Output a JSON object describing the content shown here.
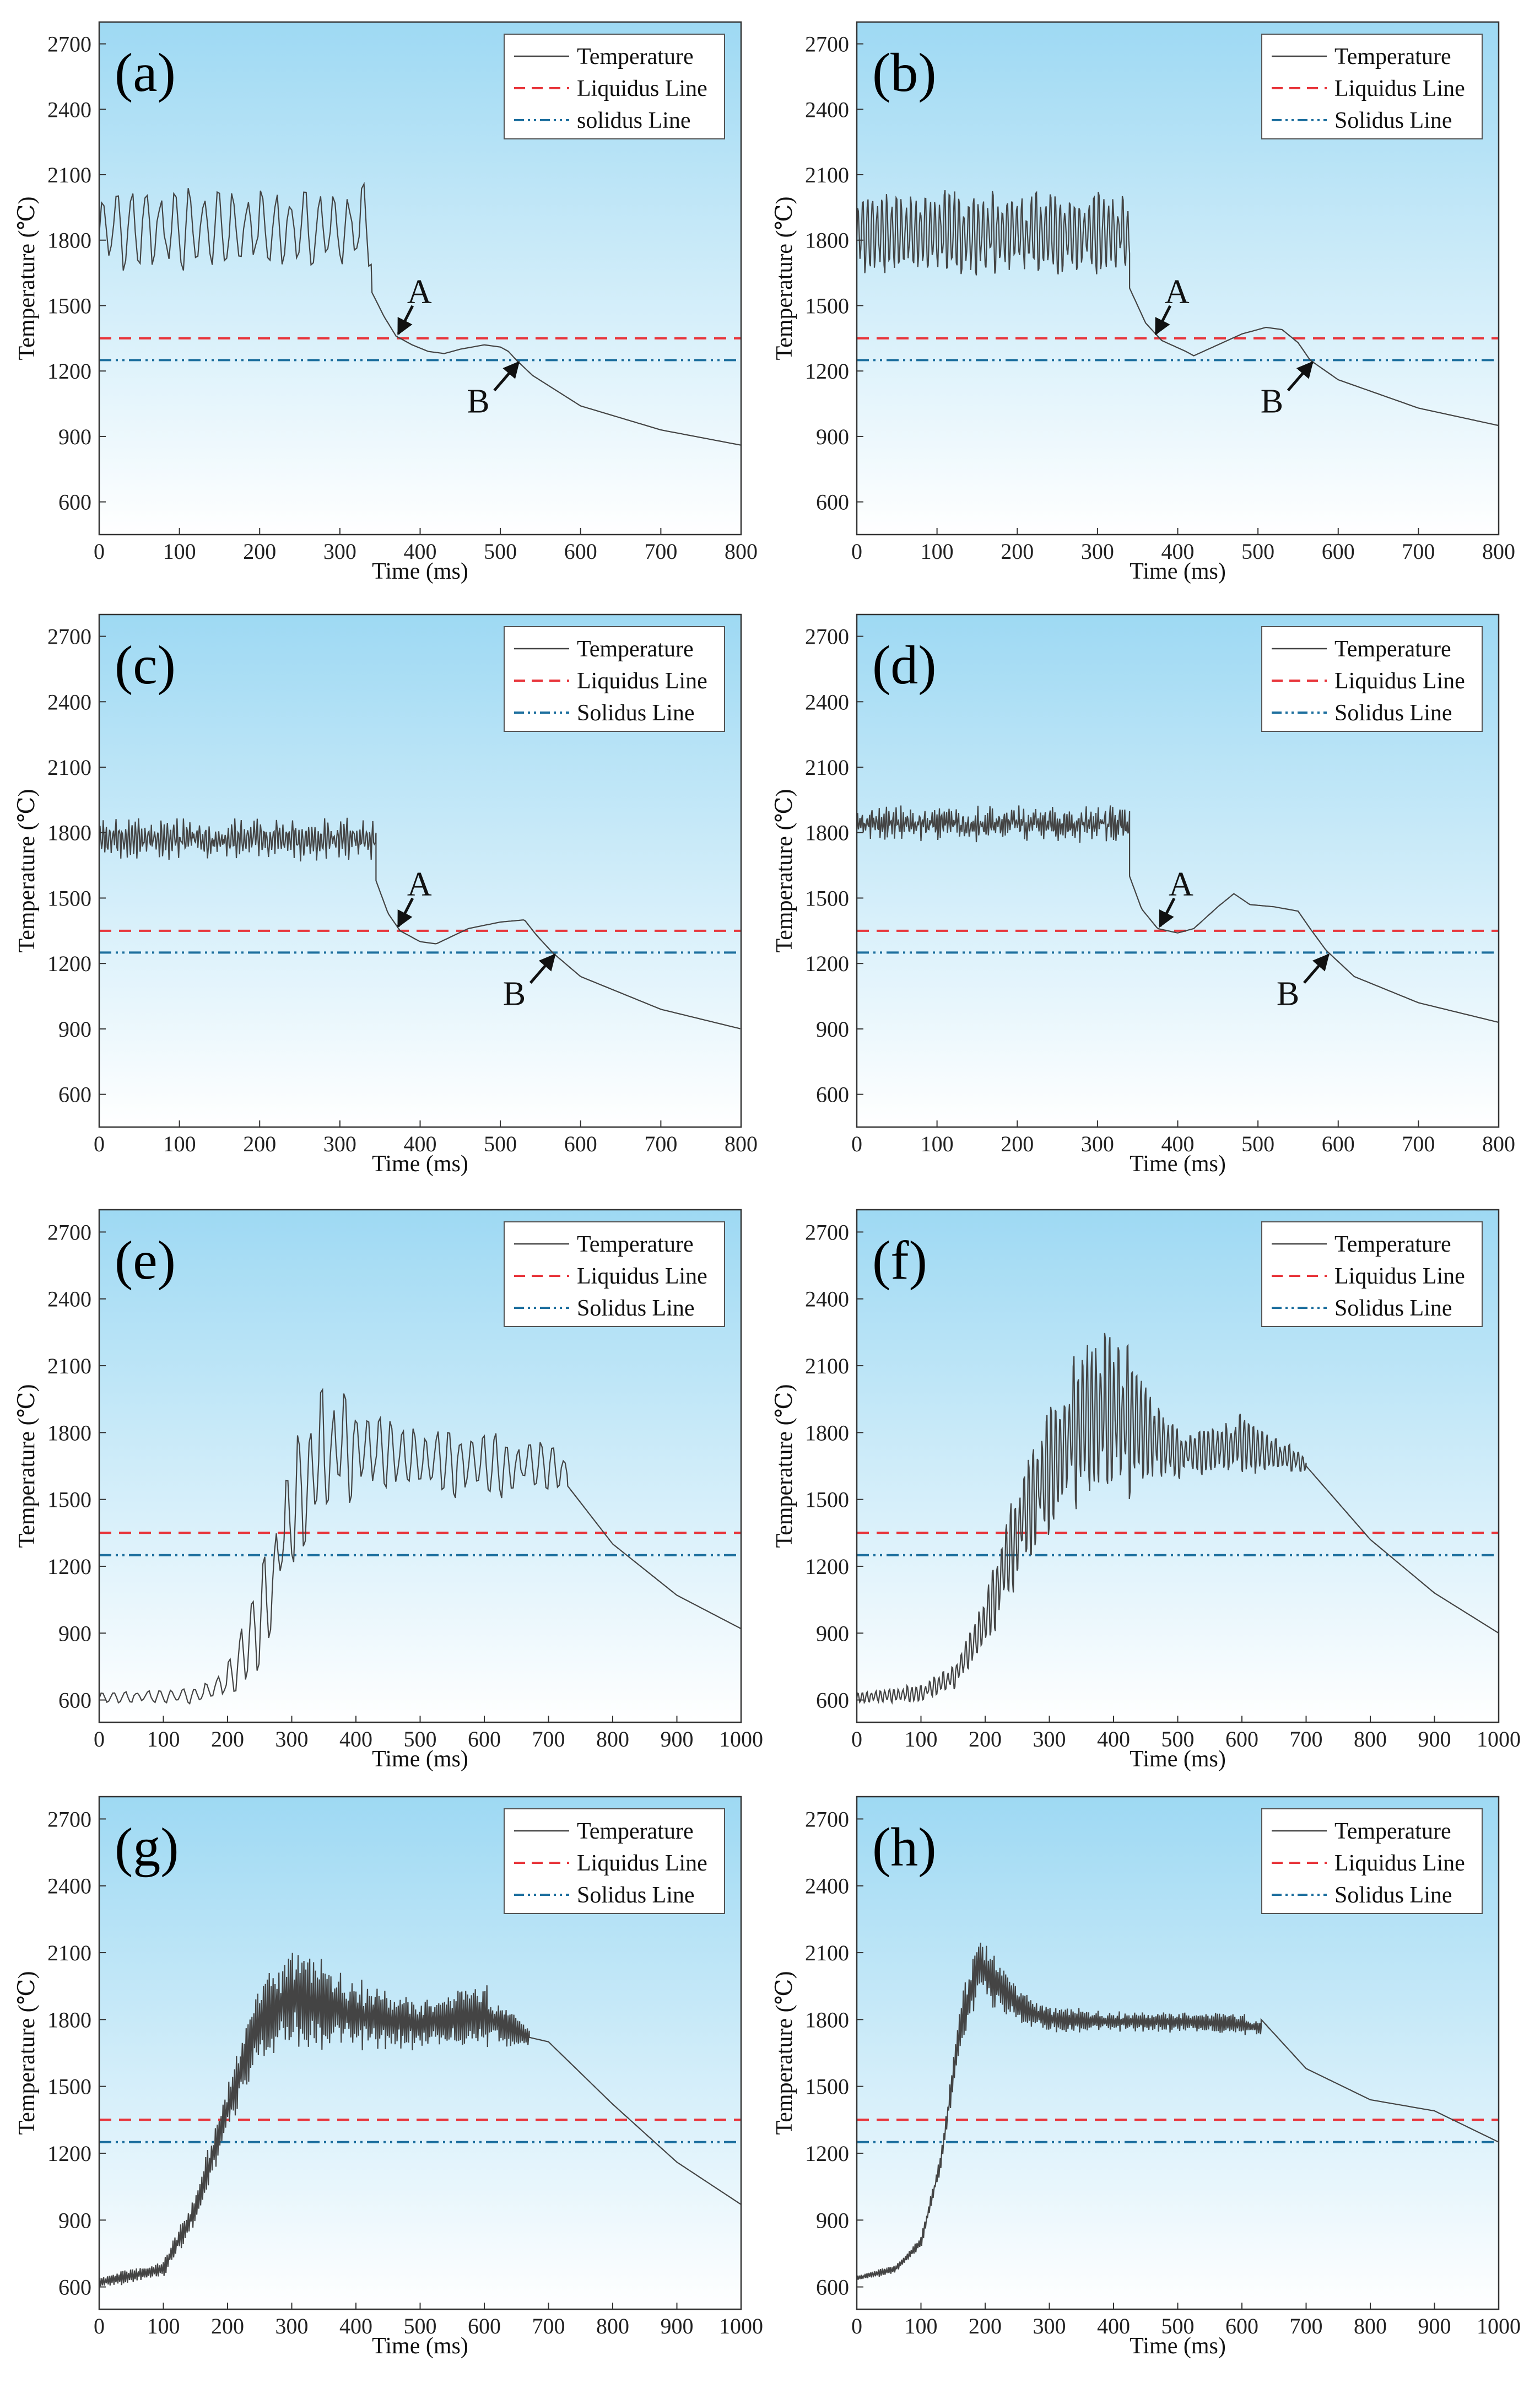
{
  "colors": {
    "bg_top": "#9ed9f3",
    "bg_bottom": "#ffffff",
    "temperature": "#444444",
    "liquidus": "#e8353b",
    "solidus": "#1d6f9e"
  },
  "chart_data": [
    {
      "type": "line",
      "panel": "(a)",
      "xlabel": "Time (ms)",
      "ylabel": "Temperature (℃)",
      "xlim": [
        0,
        800
      ],
      "ylim": [
        450,
        2800
      ],
      "xticks": [
        "0",
        "100",
        "200",
        "300",
        "400",
        "500",
        "600",
        "700",
        "800"
      ],
      "yticks": [
        "600",
        "900",
        "1200",
        "1500",
        "1800",
        "2100",
        "2400",
        "2700"
      ],
      "legend": [
        "Temperature",
        "Liquidus Line",
        "solidus Line"
      ],
      "liquidus": 1350,
      "solidus": 1250,
      "annotations": [
        {
          "text": "A",
          "x": 370,
          "y": 1360
        },
        {
          "text": "B",
          "x": 520,
          "y": 1250
        }
      ],
      "series": [
        {
          "name": "Temperature",
          "profile": "cooling",
          "melt_end": 340,
          "osc_center": 1850,
          "osc_amp": 200,
          "osc_period": 18,
          "x": [
            340,
            355,
            370,
            390,
            410,
            430,
            450,
            480,
            500,
            510,
            520,
            540,
            600,
            700,
            800
          ],
          "values": [
            1560,
            1450,
            1360,
            1320,
            1290,
            1280,
            1300,
            1320,
            1310,
            1290,
            1250,
            1180,
            1040,
            930,
            860
          ]
        }
      ]
    },
    {
      "type": "line",
      "panel": "(b)",
      "xlabel": "Time (ms)",
      "ylabel": "Temperature (℃)",
      "xlim": [
        0,
        800
      ],
      "ylim": [
        450,
        2800
      ],
      "xticks": [
        "0",
        "100",
        "200",
        "300",
        "400",
        "500",
        "600",
        "700",
        "800"
      ],
      "yticks": [
        "600",
        "900",
        "1200",
        "1500",
        "1800",
        "2100",
        "2400",
        "2700"
      ],
      "legend": [
        "Temperature",
        "Liquidus Line",
        "Solidus Line"
      ],
      "liquidus": 1350,
      "solidus": 1250,
      "annotations": [
        {
          "text": "A",
          "x": 370,
          "y": 1360
        },
        {
          "text": "B",
          "x": 565,
          "y": 1250
        }
      ],
      "series": [
        {
          "name": "Temperature",
          "profile": "cooling",
          "melt_end": 340,
          "osc_center": 1830,
          "osc_amp": 190,
          "osc_period": 6,
          "x": [
            340,
            360,
            380,
            410,
            420,
            450,
            480,
            510,
            530,
            550,
            565,
            600,
            700,
            800
          ],
          "values": [
            1580,
            1420,
            1340,
            1290,
            1270,
            1320,
            1370,
            1400,
            1390,
            1330,
            1250,
            1160,
            1030,
            950
          ]
        }
      ]
    },
    {
      "type": "line",
      "panel": "(c)",
      "xlabel": "Time (ms)",
      "ylabel": "Temperature (℃)",
      "xlim": [
        0,
        800
      ],
      "ylim": [
        450,
        2800
      ],
      "xticks": [
        "0",
        "100",
        "200",
        "300",
        "400",
        "500",
        "600",
        "700",
        "800"
      ],
      "yticks": [
        "600",
        "900",
        "1200",
        "1500",
        "1800",
        "2100",
        "2400",
        "2700"
      ],
      "legend": [
        "Temperature",
        "Liquidus Line",
        "Solidus Line"
      ],
      "liquidus": 1350,
      "solidus": 1250,
      "annotations": [
        {
          "text": "A",
          "x": 370,
          "y": 1360
        },
        {
          "text": "B",
          "x": 565,
          "y": 1250
        }
      ],
      "series": [
        {
          "name": "Temperature",
          "profile": "cooling",
          "melt_end": 345,
          "osc_center": 1770,
          "osc_amp": 70,
          "osc_period": 4,
          "x": [
            345,
            360,
            375,
            400,
            420,
            460,
            500,
            530,
            545,
            565,
            600,
            700,
            800
          ],
          "values": [
            1580,
            1430,
            1350,
            1300,
            1290,
            1360,
            1390,
            1400,
            1330,
            1250,
            1140,
            990,
            900
          ]
        }
      ]
    },
    {
      "type": "line",
      "panel": "(d)",
      "xlabel": "Time (ms)",
      "ylabel": "Temperature (℃)",
      "xlim": [
        0,
        800
      ],
      "ylim": [
        450,
        2800
      ],
      "xticks": [
        "0",
        "100",
        "200",
        "300",
        "400",
        "500",
        "600",
        "700",
        "800"
      ],
      "yticks": [
        "600",
        "900",
        "1200",
        "1500",
        "1800",
        "2100",
        "2400",
        "2700"
      ],
      "legend": [
        "Temperature",
        "Liquidus Line",
        "Solidus Line"
      ],
      "liquidus": 1350,
      "solidus": 1250,
      "annotations": [
        {
          "text": "A",
          "x": 375,
          "y": 1360
        },
        {
          "text": "B",
          "x": 585,
          "y": 1250
        }
      ],
      "series": [
        {
          "name": "Temperature",
          "profile": "cooling",
          "melt_end": 340,
          "osc_center": 1840,
          "osc_amp": 60,
          "osc_period": 3,
          "x": [
            340,
            355,
            375,
            400,
            420,
            450,
            470,
            490,
            520,
            550,
            565,
            585,
            620,
            700,
            800
          ],
          "values": [
            1600,
            1450,
            1360,
            1340,
            1360,
            1460,
            1520,
            1470,
            1460,
            1440,
            1360,
            1260,
            1140,
            1020,
            930
          ]
        }
      ]
    },
    {
      "type": "line",
      "panel": "(e)",
      "xlabel": "Time (ms)",
      "ylabel": "Temperature (℃)",
      "xlim": [
        0,
        1000
      ],
      "ylim": [
        500,
        2800
      ],
      "xticks": [
        "0",
        "100",
        "200",
        "300",
        "400",
        "500",
        "600",
        "700",
        "800",
        "900",
        "1000"
      ],
      "yticks": [
        "600",
        "900",
        "1200",
        "1500",
        "1800",
        "2100",
        "2400",
        "2700"
      ],
      "legend": [
        "Temperature",
        "Liquidus Line",
        "Solidus Line"
      ],
      "liquidus": 1350,
      "solidus": 1250,
      "annotations": [],
      "series": [
        {
          "name": "Temperature",
          "profile": "heating",
          "osc_period": 18,
          "env_x": [
            0,
            150,
            200,
            250,
            300,
            350,
            400,
            500,
            600,
            700,
            730
          ],
          "env_mid": [
            610,
            620,
            680,
            950,
            1450,
            1700,
            1750,
            1680,
            1650,
            1650,
            1620
          ],
          "env_amp": [
            30,
            40,
            80,
            250,
            300,
            350,
            250,
            170,
            170,
            120,
            80
          ],
          "tail_x": [
            730,
            800,
            900,
            1000
          ],
          "tail_values": [
            1560,
            1300,
            1070,
            920
          ]
        }
      ]
    },
    {
      "type": "line",
      "panel": "(f)",
      "xlabel": "Time (ms)",
      "ylabel": "Temperature (℃)",
      "xlim": [
        0,
        1000
      ],
      "ylim": [
        500,
        2800
      ],
      "xticks": [
        "0",
        "100",
        "200",
        "300",
        "400",
        "500",
        "600",
        "700",
        "800",
        "900",
        "1000"
      ],
      "yticks": [
        "600",
        "900",
        "1200",
        "1500",
        "1800",
        "2100",
        "2400",
        "2700"
      ],
      "legend": [
        "Temperature",
        "Liquidus Line",
        "Solidus Line"
      ],
      "liquidus": 1350,
      "solidus": 1250,
      "annotations": [],
      "series": [
        {
          "name": "Temperature",
          "profile": "heating",
          "osc_period": 7,
          "env_x": [
            0,
            100,
            150,
            200,
            250,
            300,
            350,
            400,
            450,
            500,
            600,
            700
          ],
          "env_mid": [
            610,
            630,
            700,
            950,
            1350,
            1650,
            1850,
            1900,
            1800,
            1700,
            1750,
            1660
          ],
          "env_amp": [
            30,
            40,
            60,
            150,
            250,
            300,
            420,
            400,
            300,
            120,
            150,
            40
          ],
          "tail_x": [
            700,
            800,
            900,
            1000
          ],
          "tail_values": [
            1650,
            1320,
            1080,
            900
          ]
        }
      ]
    },
    {
      "type": "line",
      "panel": "(g)",
      "xlabel": "Time (ms)",
      "ylabel": "Temperature (℃)",
      "xlim": [
        0,
        1000
      ],
      "ylim": [
        500,
        2800
      ],
      "xticks": [
        "0",
        "100",
        "200",
        "300",
        "400",
        "500",
        "600",
        "700",
        "800",
        "900",
        "1000"
      ],
      "yticks": [
        "600",
        "900",
        "1200",
        "1500",
        "1800",
        "2100",
        "2400",
        "2700"
      ],
      "legend": [
        "Temperature",
        "Liquidus Line",
        "Solidus Line"
      ],
      "liquidus": 1350,
      "solidus": 1250,
      "annotations": [],
      "series": [
        {
          "name": "Temperature",
          "profile": "heating",
          "osc_period": 3,
          "env_x": [
            0,
            100,
            150,
            200,
            250,
            300,
            400,
            500,
            600,
            670
          ],
          "env_mid": [
            620,
            680,
            950,
            1400,
            1800,
            1900,
            1820,
            1780,
            1820,
            1720
          ],
          "env_amp": [
            30,
            40,
            80,
            120,
            200,
            230,
            180,
            120,
            150,
            50
          ],
          "tail_x": [
            670,
            700,
            800,
            900,
            1000
          ],
          "tail_values": [
            1720,
            1700,
            1420,
            1160,
            970
          ]
        }
      ]
    },
    {
      "type": "line",
      "panel": "(h)",
      "xlabel": "Time (ms)",
      "ylabel": "Temperature (℃)",
      "xlim": [
        0,
        1000
      ],
      "ylim": [
        500,
        2800
      ],
      "xticks": [
        "0",
        "100",
        "200",
        "300",
        "400",
        "500",
        "600",
        "700",
        "800",
        "900",
        "1000"
      ],
      "yticks": [
        "600",
        "900",
        "1200",
        "1500",
        "1800",
        "2100",
        "2400",
        "2700"
      ],
      "legend": [
        "Temperature",
        "Liquidus Line",
        "Solidus Line"
      ],
      "liquidus": 1350,
      "solidus": 1250,
      "annotations": [],
      "series": [
        {
          "name": "Temperature",
          "profile": "heating",
          "osc_period": 3,
          "env_x": [
            0,
            60,
            100,
            130,
            160,
            190,
            220,
            260,
            300,
            400,
            500,
            600,
            630
          ],
          "env_mid": [
            640,
            680,
            800,
            1150,
            1750,
            2050,
            1950,
            1850,
            1800,
            1790,
            1790,
            1780,
            1760
          ],
          "env_amp": [
            15,
            20,
            30,
            40,
            120,
            150,
            130,
            80,
            60,
            50,
            50,
            50,
            40
          ],
          "tail_x": [
            630,
            700,
            800,
            900,
            1000
          ],
          "tail_values": [
            1800,
            1580,
            1440,
            1390,
            1250
          ]
        }
      ]
    }
  ]
}
